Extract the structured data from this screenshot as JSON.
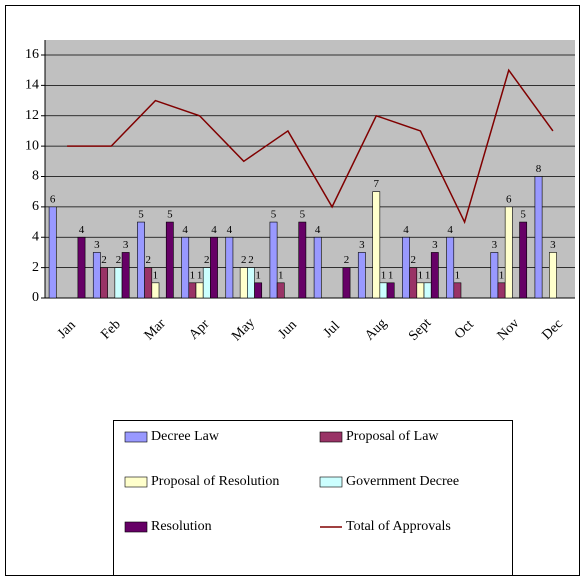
{
  "chart_data": {
    "type": "bar",
    "categories": [
      "Jan",
      "Feb",
      "Mar",
      "Apr",
      "May",
      "Jun",
      "Jul",
      "Aug",
      "Sept",
      "Oct",
      "Nov",
      "Dec"
    ],
    "series": [
      {
        "name": "Decree Law",
        "color": "#9999ff",
        "values": [
          6,
          3,
          5,
          4,
          4,
          5,
          4,
          3,
          4,
          4,
          3,
          8
        ]
      },
      {
        "name": "Proposal of Law",
        "color": "#993366",
        "values": [
          0,
          2,
          2,
          1,
          0,
          1,
          0,
          0,
          2,
          1,
          1,
          0
        ]
      },
      {
        "name": "Proposal of Resolution",
        "color": "#ffffcc",
        "values": [
          0,
          0,
          1,
          1,
          2,
          0,
          0,
          7,
          1,
          0,
          6,
          3
        ]
      },
      {
        "name": "Government Decree",
        "color": "#ccffff",
        "values": [
          0,
          2,
          0,
          2,
          2,
          0,
          0,
          1,
          1,
          0,
          0,
          0
        ]
      },
      {
        "name": "Resolution",
        "color": "#660066",
        "values": [
          4,
          3,
          5,
          4,
          1,
          5,
          2,
          1,
          3,
          0,
          5,
          0
        ]
      },
      {
        "name": "Total of Approvals",
        "type": "line",
        "color": "#800000",
        "values": [
          10,
          10,
          13,
          12,
          9,
          11,
          6,
          12,
          11,
          5,
          15,
          11
        ]
      }
    ],
    "ylim": [
      0,
      16
    ],
    "yticks": [
      0,
      2,
      4,
      6,
      8,
      10,
      12,
      14,
      16
    ],
    "grid": true
  }
}
